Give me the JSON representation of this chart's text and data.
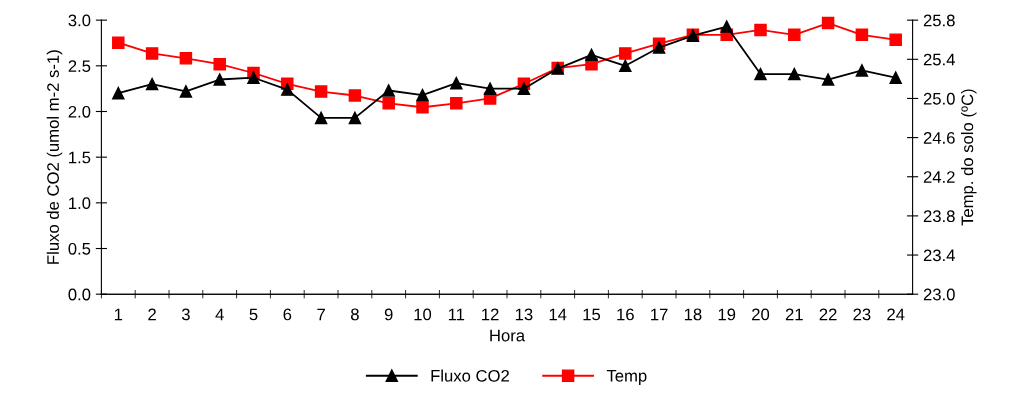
{
  "chart_data": {
    "type": "line",
    "xlabel": "Hora",
    "ylabel": "Fluxo de CO2 (umol m-2 s-1)",
    "y2label": "Temp. do solo (ºC)",
    "categories": [
      "1",
      "2",
      "3",
      "4",
      "5",
      "6",
      "7",
      "8",
      "9",
      "10",
      "11",
      "12",
      "13",
      "14",
      "15",
      "16",
      "17",
      "18",
      "19",
      "20",
      "21",
      "22",
      "23",
      "24"
    ],
    "series": [
      {
        "name": "Fluxo CO2",
        "color": "#000000",
        "marker": "triangle",
        "values": [
          2.2,
          2.3,
          2.22,
          2.35,
          2.37,
          2.24,
          1.93,
          1.93,
          2.23,
          2.18,
          2.31,
          2.25,
          2.25,
          2.47,
          2.62,
          2.5,
          2.7,
          2.83,
          2.93,
          2.41,
          2.41,
          2.35,
          2.45,
          2.37
        ]
      },
      {
        "name": "Temp",
        "color": "#ff0000",
        "marker": "square",
        "axis": "y2",
        "values": [
          25.57,
          25.46,
          25.41,
          25.35,
          25.26,
          25.15,
          25.07,
          25.03,
          24.95,
          24.91,
          24.95,
          25.0,
          25.15,
          25.31,
          25.35,
          25.46,
          25.56,
          25.65,
          25.65,
          25.7,
          25.65,
          25.77,
          25.65,
          25.6
        ]
      }
    ],
    "ylim": [
      0,
      3
    ],
    "yticks": [
      {
        "value": 0,
        "label": "0.0"
      },
      {
        "value": 0.5,
        "label": "0.5"
      },
      {
        "value": 1,
        "label": "1.0"
      },
      {
        "value": 1.5,
        "label": "1.5"
      },
      {
        "value": 2,
        "label": "2.0"
      },
      {
        "value": 2.5,
        "label": "2.5"
      },
      {
        "value": 3,
        "label": "3.0"
      }
    ],
    "y2lim": [
      23,
      25.8
    ],
    "y2ticks": [
      {
        "value": 23,
        "label": "23.0"
      },
      23.4,
      23.8,
      24.2,
      24.6,
      {
        "value": 25,
        "label": "25.0"
      },
      25.4,
      25.8
    ],
    "grid": false,
    "legend": "bottom",
    "line_style": "solid"
  }
}
